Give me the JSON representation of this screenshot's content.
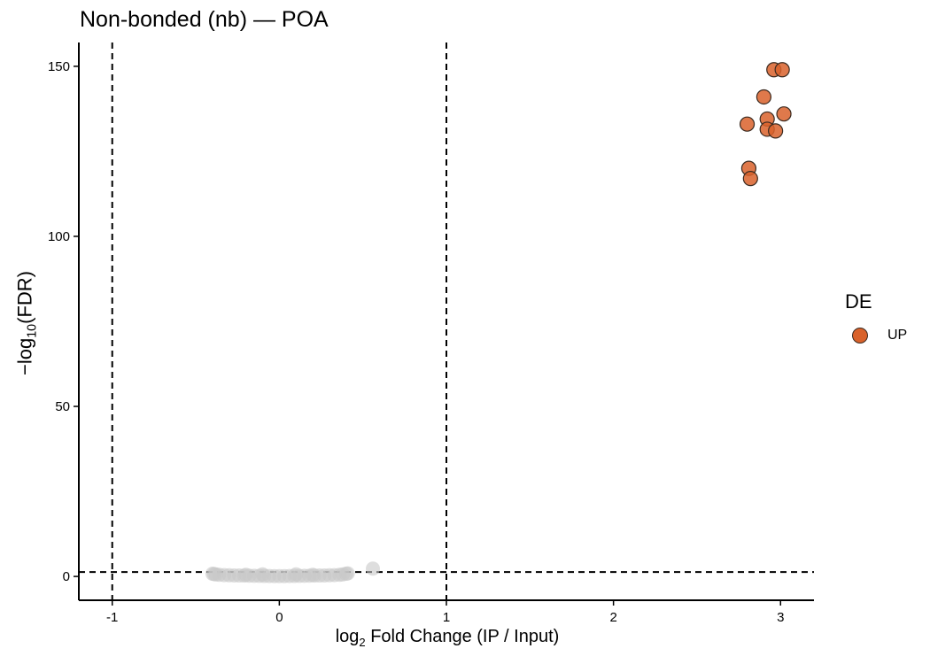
{
  "chart_data": {
    "type": "scatter",
    "title": "Non-bonded (nb) — POA",
    "xlabel": {
      "pre": "log",
      "sub": "2",
      "post": " Fold Change (IP / Input)"
    },
    "ylabel": {
      "pre": "−log",
      "sub": "10",
      "post": "(FDR)"
    },
    "xlim": [
      -1.2,
      3.2
    ],
    "ylim": [
      -7,
      157
    ],
    "xticks": [
      -1,
      0,
      1,
      2,
      3
    ],
    "xtick_labels": [
      "-1",
      "0",
      "1",
      "2",
      "3"
    ],
    "yticks": [
      0,
      50,
      100,
      150
    ],
    "ytick_labels": [
      "0",
      "50",
      "100",
      "150"
    ],
    "grid": false,
    "thresholds": {
      "vertical": [
        -1,
        1
      ],
      "horizontal": [
        1.3
      ]
    },
    "legend": {
      "title": "DE",
      "placement": "right",
      "entries": [
        {
          "label": "UP",
          "color": "#d9622b"
        }
      ]
    },
    "series": [
      {
        "name": "UP",
        "color": "#d9622b",
        "points": [
          [
            2.96,
            149
          ],
          [
            3.01,
            149
          ],
          [
            2.9,
            141
          ],
          [
            2.92,
            134.5
          ],
          [
            3.02,
            136
          ],
          [
            2.8,
            133
          ],
          [
            2.92,
            131.5
          ],
          [
            2.97,
            131
          ],
          [
            2.81,
            120
          ],
          [
            2.82,
            117
          ]
        ]
      },
      {
        "role": "not-significant",
        "color": "#c8c8c8",
        "points": [
          [
            0.56,
            2.3
          ],
          [
            0.41,
            0.9
          ],
          [
            0.4,
            0.8
          ],
          [
            -0.4,
            0.8
          ],
          [
            -0.39,
            0.7
          ],
          [
            -0.36,
            0.5
          ],
          [
            -0.33,
            0.4
          ],
          [
            -0.3,
            0.35
          ],
          [
            -0.27,
            0.3
          ],
          [
            -0.24,
            0.28
          ],
          [
            -0.21,
            0.25
          ],
          [
            -0.18,
            0.22
          ],
          [
            -0.15,
            0.2
          ],
          [
            -0.12,
            0.18
          ],
          [
            -0.09,
            0.15
          ],
          [
            -0.06,
            0.12
          ],
          [
            -0.03,
            0.1
          ],
          [
            0.0,
            0.1
          ],
          [
            0.03,
            0.1
          ],
          [
            0.06,
            0.12
          ],
          [
            0.09,
            0.15
          ],
          [
            0.12,
            0.18
          ],
          [
            0.15,
            0.2
          ],
          [
            0.18,
            0.22
          ],
          [
            0.21,
            0.25
          ],
          [
            0.24,
            0.28
          ],
          [
            0.27,
            0.3
          ],
          [
            0.3,
            0.35
          ],
          [
            0.33,
            0.4
          ],
          [
            0.36,
            0.5
          ],
          [
            0.38,
            0.6
          ],
          [
            -0.38,
            0.6
          ],
          [
            0.2,
            0.5
          ],
          [
            -0.2,
            0.5
          ],
          [
            0.1,
            0.6
          ],
          [
            -0.1,
            0.6
          ]
        ]
      }
    ]
  }
}
